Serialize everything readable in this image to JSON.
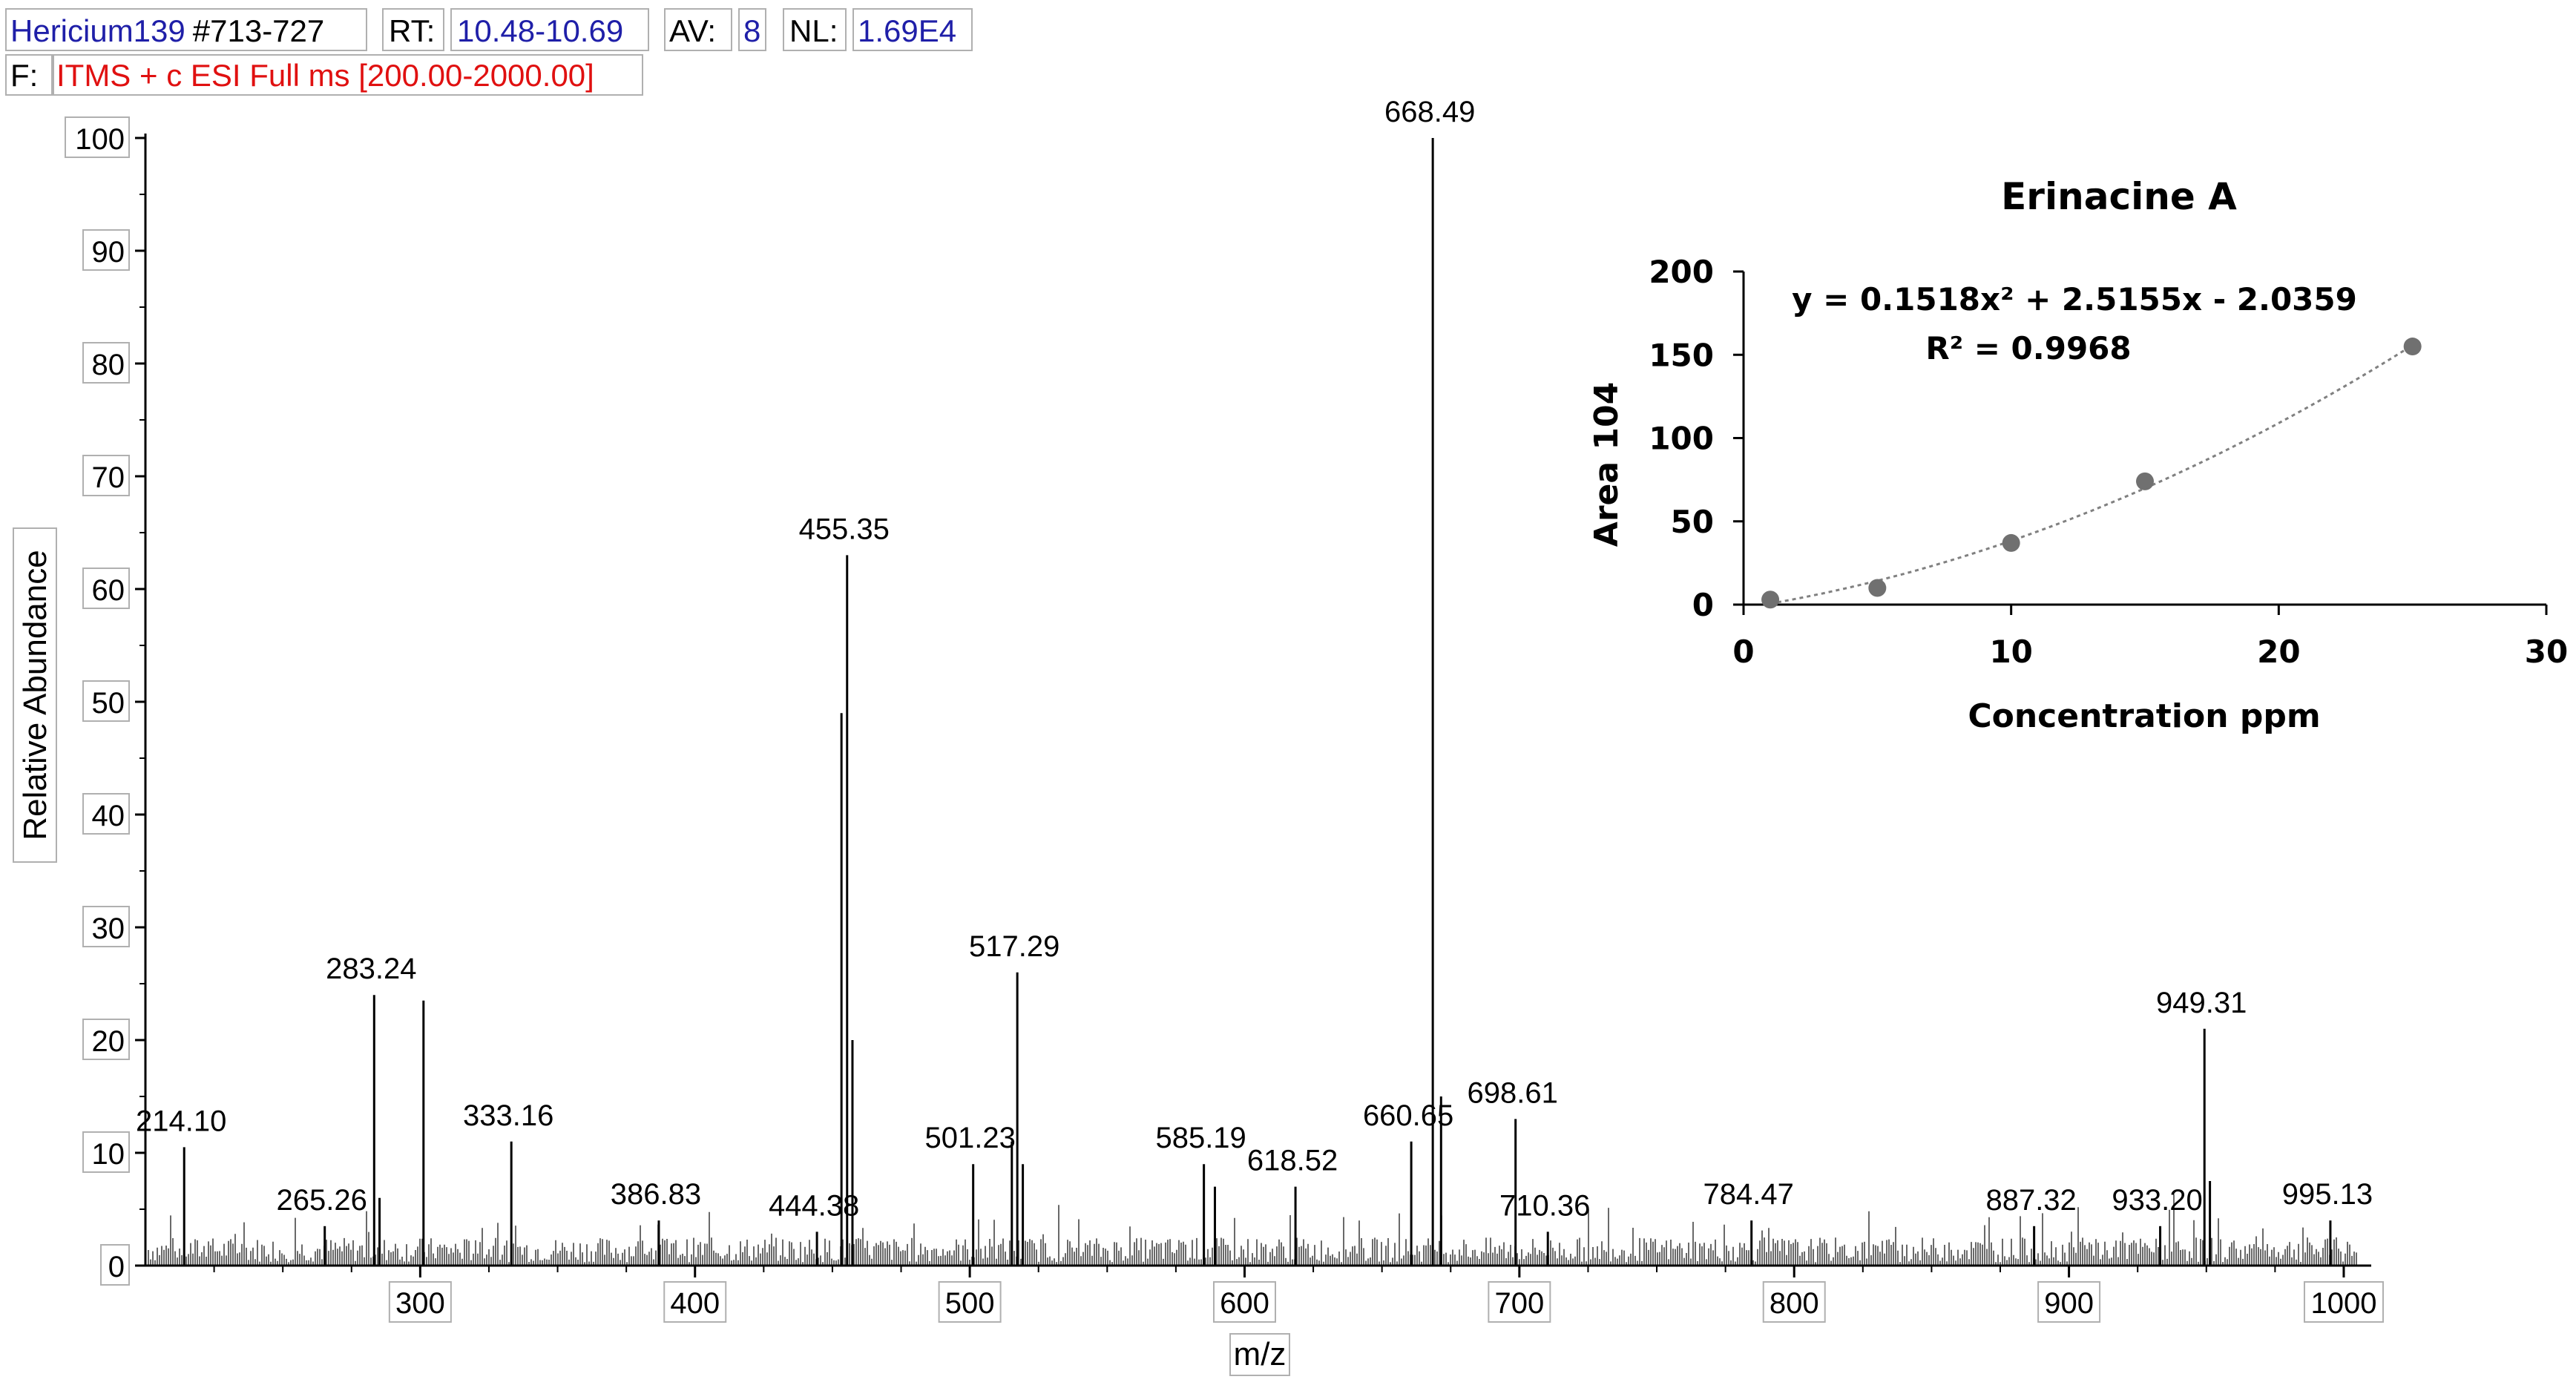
{
  "header": {
    "file": "Hericium139",
    "scans": "#713-727",
    "rt_label": "RT:",
    "rt_value": "10.48-10.69",
    "av_label": "AV:",
    "av_value": "8",
    "nl_label": "NL:",
    "nl_value": "1.69E4",
    "filter_label": "F:",
    "filter_value": "ITMS + c ESI Full ms [200.00-2000.00]",
    "colors": {
      "file": "#1f1fa8",
      "filter": "#e01010"
    }
  },
  "chart_data": [
    {
      "type": "bar",
      "xlabel": "m/z",
      "ylabel": "Relative Abundance",
      "xlim": [
        200,
        1010
      ],
      "ylim": [
        0,
        100
      ],
      "xticks": [
        300,
        400,
        500,
        600,
        700,
        800,
        900,
        1000
      ],
      "yticks": [
        0,
        10,
        20,
        30,
        40,
        50,
        60,
        70,
        80,
        90,
        100
      ],
      "peaks": [
        {
          "x": 214.1,
          "y": 10.5,
          "label": "214.10"
        },
        {
          "x": 265.26,
          "y": 3.5,
          "label": "265.26"
        },
        {
          "x": 283.24,
          "y": 24,
          "label": "283.24"
        },
        {
          "x": 285.2,
          "y": 6
        },
        {
          "x": 301.2,
          "y": 23.5
        },
        {
          "x": 333.16,
          "y": 11,
          "label": "333.16"
        },
        {
          "x": 386.83,
          "y": 4,
          "label": "386.83"
        },
        {
          "x": 444.38,
          "y": 3,
          "label": "444.38"
        },
        {
          "x": 453.3,
          "y": 49
        },
        {
          "x": 455.35,
          "y": 63,
          "label": "455.35"
        },
        {
          "x": 457.3,
          "y": 20
        },
        {
          "x": 501.23,
          "y": 9,
          "label": "501.23"
        },
        {
          "x": 515.3,
          "y": 11
        },
        {
          "x": 517.29,
          "y": 26,
          "label": "517.29"
        },
        {
          "x": 519.3,
          "y": 9
        },
        {
          "x": 585.19,
          "y": 9,
          "label": "585.19"
        },
        {
          "x": 589.2,
          "y": 7
        },
        {
          "x": 618.52,
          "y": 7,
          "label": "618.52"
        },
        {
          "x": 660.65,
          "y": 11,
          "label": "660.65"
        },
        {
          "x": 668.49,
          "y": 100,
          "label": "668.49"
        },
        {
          "x": 671.5,
          "y": 15
        },
        {
          "x": 698.61,
          "y": 13,
          "label": "698.61"
        },
        {
          "x": 710.36,
          "y": 3,
          "label": "710.36"
        },
        {
          "x": 784.47,
          "y": 4,
          "label": "784.47"
        },
        {
          "x": 887.32,
          "y": 3.5,
          "label": "887.32"
        },
        {
          "x": 933.2,
          "y": 3.5,
          "label": "933.20"
        },
        {
          "x": 949.31,
          "y": 21,
          "label": "949.31"
        },
        {
          "x": 951.3,
          "y": 7.5
        },
        {
          "x": 995.13,
          "y": 4,
          "label": "995.13"
        }
      ]
    },
    {
      "type": "scatter",
      "title": "Erinacine A",
      "xlabel": "Concentration ppm",
      "ylabel": "Area 104",
      "xlim": [
        0,
        30
      ],
      "ylim": [
        0,
        200
      ],
      "xticks": [
        0,
        10,
        20,
        30
      ],
      "yticks": [
        0,
        50,
        100,
        150,
        200
      ],
      "points": [
        {
          "x": 1,
          "y": 3
        },
        {
          "x": 5,
          "y": 10
        },
        {
          "x": 10,
          "y": 37
        },
        {
          "x": 15,
          "y": 74
        },
        {
          "x": 25,
          "y": 155
        }
      ],
      "trendline": {
        "type": "polynomial",
        "coefficients": [
          0.1518,
          2.5155,
          -2.0359
        ]
      },
      "equation": "y = 0.1518x² + 2.5155x - 2.0359",
      "r2": "R² = 0.9968",
      "colors": {
        "marker": "#707070",
        "trend": "#808080"
      }
    }
  ]
}
